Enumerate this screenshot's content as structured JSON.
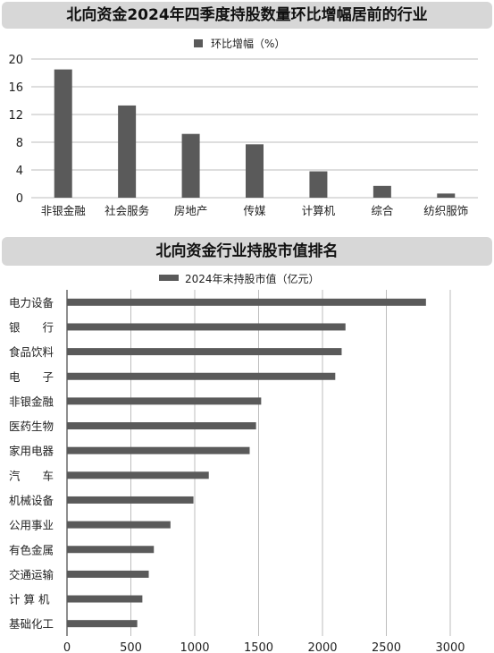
{
  "chart_data": [
    {
      "type": "bar",
      "title": "北向资金2024年四季度持股数量环比增幅居前的行业",
      "legend": "环比增幅（%）",
      "legend_position": "top",
      "categories": [
        "非银金融",
        "社会服务",
        "房地产",
        "传媒",
        "计算机",
        "综合",
        "纺织服饰"
      ],
      "values": [
        18.5,
        13.3,
        9.2,
        7.7,
        3.8,
        1.7,
        0.6
      ],
      "yticks": [
        "0",
        "4",
        "8",
        "12",
        "16",
        "20"
      ],
      "ylim": [
        0,
        20
      ],
      "grid": true,
      "bar_color": "#5a5a5a"
    },
    {
      "type": "bar",
      "orientation": "horizontal",
      "title": "北向资金行业持股市值排名",
      "legend": "2024年末持股市值（亿元）",
      "legend_position": "top",
      "categories": [
        "电力设备",
        "银　　行",
        "食品饮料",
        "电　　子",
        "非银金融",
        "医药生物",
        "家用电器",
        "汽　　车",
        "机械设备",
        "公用事业",
        "有色金属",
        "交通运输",
        "计 算 机",
        "基础化工"
      ],
      "values": [
        2810,
        2180,
        2150,
        2100,
        1520,
        1480,
        1430,
        1110,
        990,
        810,
        680,
        640,
        590,
        550
      ],
      "xticks": [
        "0",
        "500",
        "1000",
        "1500",
        "2000",
        "2500",
        "3000"
      ],
      "xlim": [
        0,
        3000
      ],
      "grid": true,
      "bar_color": "#5a5a5a"
    }
  ]
}
